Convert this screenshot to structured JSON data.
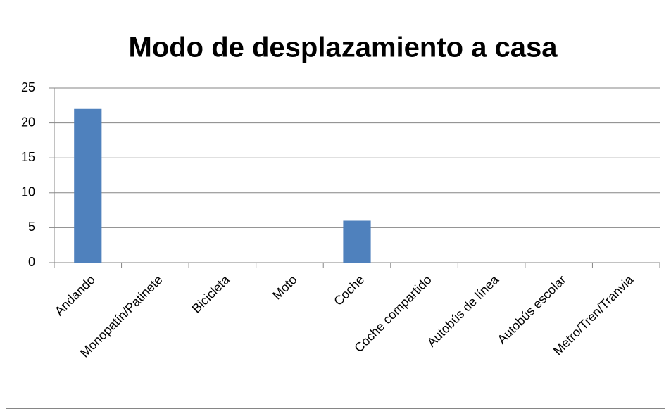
{
  "chart_data": {
    "type": "bar",
    "title": "Modo de desplazamiento a casa",
    "categories": [
      "Andando",
      "Monopatín/Patinete",
      "Bicicleta",
      "Moto",
      "Coche",
      "Coche compartido",
      "Autobús de línea",
      "Autobús escolar",
      "Metro/Tren/Tranvia"
    ],
    "values": [
      22,
      0,
      0,
      0,
      6,
      0,
      0,
      0,
      0
    ],
    "color": "#4f81bd",
    "ylim": [
      0,
      25
    ],
    "yticks": [
      0,
      5,
      10,
      15,
      20,
      25
    ],
    "grid": true
  }
}
